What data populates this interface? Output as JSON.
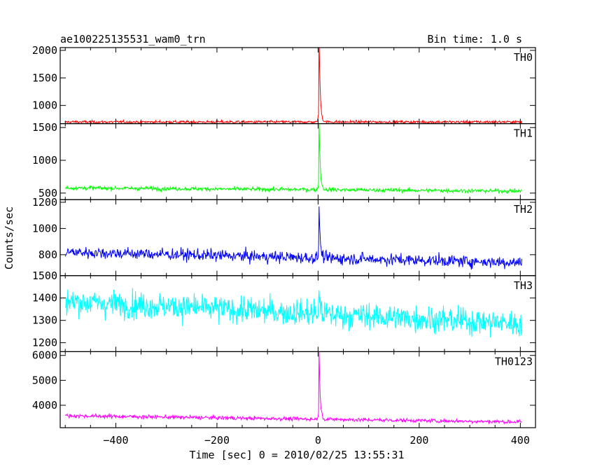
{
  "chart_data": {
    "type": "line",
    "title_left": "ae100225135531_wam0_trn",
    "title_right": "Bin time: 1.0 s",
    "xlabel": "Time [sec] 0 = 2010/02/25 13:55:31",
    "ylabel": "Counts/sec",
    "xlim": [
      -510,
      430
    ],
    "x_ticks": [
      -400,
      -200,
      0,
      200,
      400
    ],
    "x_tick_labels": [
      "−400",
      "−200",
      "0",
      "200",
      "400"
    ],
    "x_start": -500,
    "x_end": 403,
    "x_step": 1,
    "peak_time": 2,
    "grid": false,
    "panels": [
      {
        "name": "TH0",
        "color": "#ff0000",
        "ylim": [
          670,
          2050
        ],
        "ticks": [
          1000,
          1500,
          2000
        ],
        "tick_labels": [
          "1000",
          "1500",
          "2000"
        ],
        "base_start": 700,
        "base_end": 700,
        "noise": 18,
        "peak": 2280
      },
      {
        "name": "TH1",
        "color": "#00ff00",
        "ylim": [
          400,
          1560
        ],
        "ticks": [
          500,
          1000,
          1500
        ],
        "tick_labels": [
          "500",
          "1000",
          "1500"
        ],
        "base_start": 580,
        "base_end": 530,
        "noise": 22,
        "peak": 1620
      },
      {
        "name": "TH2",
        "color": "#0000ff",
        "ylim": [
          640,
          1220
        ],
        "ticks": [
          800,
          1000,
          1200
        ],
        "tick_labels": [
          "800",
          "1000",
          "1200"
        ],
        "base_start": 820,
        "base_end": 740,
        "noise": 32,
        "peak": 1230
      },
      {
        "name": "TH3",
        "color": "#00ffff",
        "ylim": [
          1160,
          1500
        ],
        "ticks": [
          1200,
          1300,
          1400,
          1500
        ],
        "tick_labels": [
          "1200",
          "1300",
          "1400",
          "1500"
        ],
        "base_start": 1385,
        "base_end": 1285,
        "noise": 42,
        "peak": 1500
      },
      {
        "name": "TH0123",
        "color": "#ff00ff",
        "ylim": [
          3100,
          6150
        ],
        "ticks": [
          4000,
          5000,
          6000
        ],
        "tick_labels": [
          "4000",
          "5000",
          "6000"
        ],
        "base_start": 3580,
        "base_end": 3330,
        "noise": 55,
        "peak": 6300
      }
    ]
  }
}
